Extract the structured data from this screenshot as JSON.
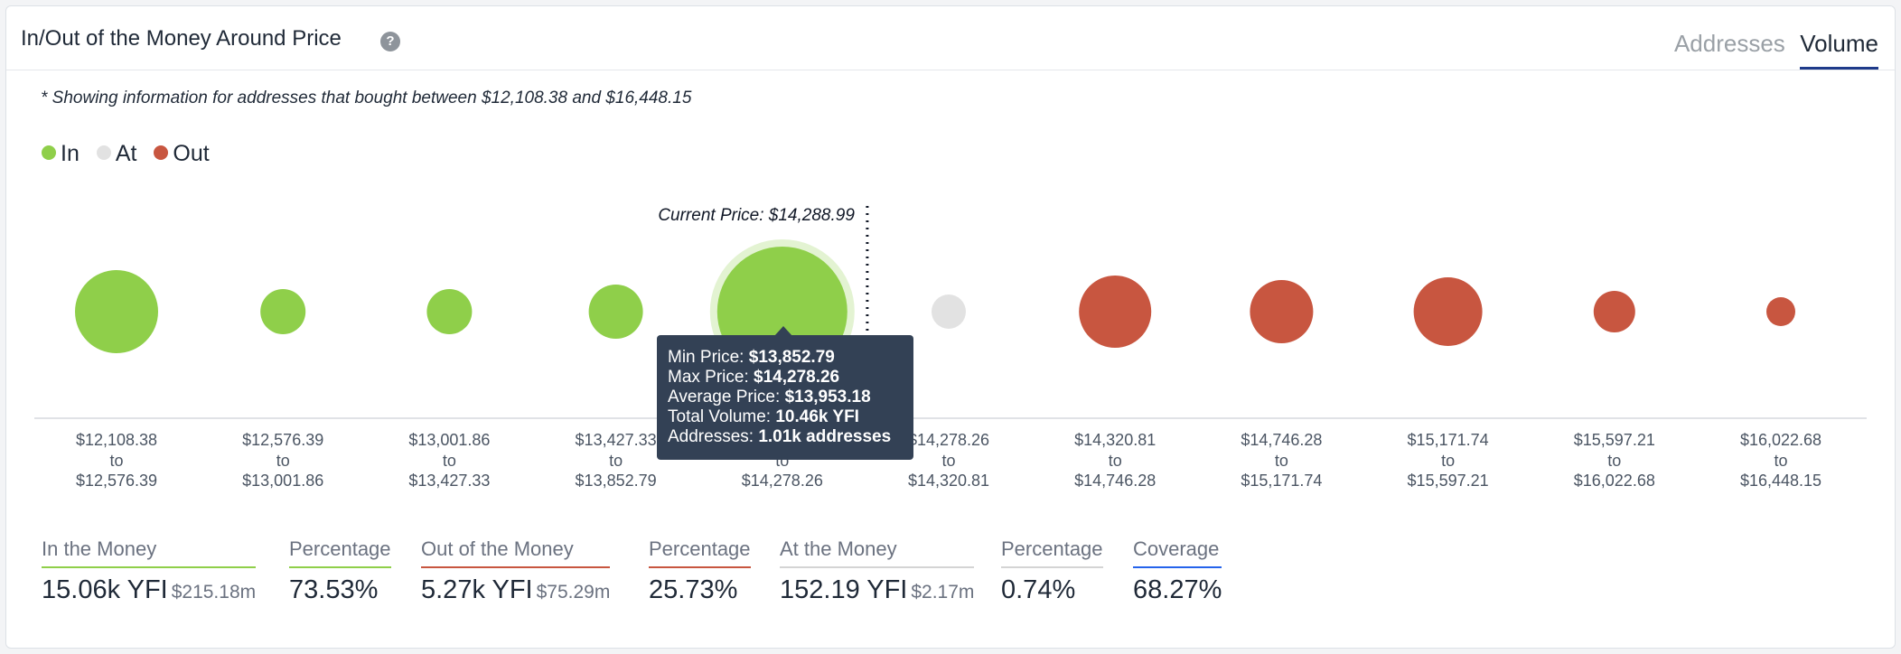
{
  "header": {
    "title": "In/Out of the Money Around Price",
    "help_icon": "question-circle-icon",
    "tabs": [
      {
        "label": "Addresses",
        "active": false
      },
      {
        "label": "Volume",
        "active": true
      }
    ]
  },
  "note": "* Showing information for addresses that bought between $12,108.38 and $16,448.15",
  "legend": [
    {
      "label": "In",
      "color": "#8fcf4a"
    },
    {
      "label": "At",
      "color": "#e2e2e2"
    },
    {
      "label": "Out",
      "color": "#c85640"
    }
  ],
  "current_price_label": "Current Price: $14,288.99",
  "tooltip": {
    "min_label": "Min Price:",
    "min_value": "$13,852.79",
    "max_label": "Max Price:",
    "max_value": "$14,278.26",
    "avg_label": "Average Price:",
    "avg_value": "$13,953.18",
    "vol_label": "Total Volume:",
    "vol_value": "10.46k YFI",
    "addr_label": "Addresses:",
    "addr_value": "1.01k addresses"
  },
  "chart_data": {
    "type": "scatter",
    "current_price": 14288.99,
    "colors": {
      "in": "#8fcf4a",
      "at": "#e2e2e2",
      "out": "#c85640"
    },
    "highlighted_index": 4,
    "buckets": [
      {
        "from": "$12,108.38",
        "to_label": "to",
        "to": "$12,576.39",
        "status": "in",
        "size": 46
      },
      {
        "from": "$12,576.39",
        "to_label": "to",
        "to": "$13,001.86",
        "status": "in",
        "size": 25
      },
      {
        "from": "$13,001.86",
        "to_label": "to",
        "to": "$13,427.33",
        "status": "in",
        "size": 25
      },
      {
        "from": "$13,427.33",
        "to_label": "to",
        "to": "$13,852.79",
        "status": "in",
        "size": 30
      },
      {
        "from": "$13,852.79",
        "to_label": "to",
        "to": "$14,278.26",
        "status": "in",
        "size": 72
      },
      {
        "from": "$14,278.26",
        "to_label": "to",
        "to": "$14,320.81",
        "status": "at",
        "size": 19
      },
      {
        "from": "$14,320.81",
        "to_label": "to",
        "to": "$14,746.28",
        "status": "out",
        "size": 40
      },
      {
        "from": "$14,746.28",
        "to_label": "to",
        "to": "$15,171.74",
        "status": "out",
        "size": 35
      },
      {
        "from": "$15,171.74",
        "to_label": "to",
        "to": "$15,597.21",
        "status": "out",
        "size": 38
      },
      {
        "from": "$15,597.21",
        "to_label": "to",
        "to": "$16,022.68",
        "status": "out",
        "size": 23
      },
      {
        "from": "$16,022.68",
        "to_label": "to",
        "to": "$16,448.15",
        "status": "out",
        "size": 16
      }
    ]
  },
  "stats": [
    {
      "label": "In the Money",
      "value": "15.06k YFI",
      "sub": "$215.18m",
      "color": "#8fcf4a"
    },
    {
      "label": "Percentage",
      "value": "73.53%",
      "sub": "",
      "color": "#8fcf4a"
    },
    {
      "label": "Out of the Money",
      "value": "5.27k YFI",
      "sub": "$75.29m",
      "color": "#c85640"
    },
    {
      "label": "Percentage",
      "value": "25.73%",
      "sub": "",
      "color": "#c85640"
    },
    {
      "label": "At the Money",
      "value": "152.19 YFI",
      "sub": "$2.17m",
      "color": "#d4d4d4"
    },
    {
      "label": "Percentage",
      "value": "0.74%",
      "sub": "",
      "color": "#d4d4d4"
    },
    {
      "label": "Coverage",
      "value": "68.27%",
      "sub": "",
      "color": "#2563eb"
    }
  ]
}
